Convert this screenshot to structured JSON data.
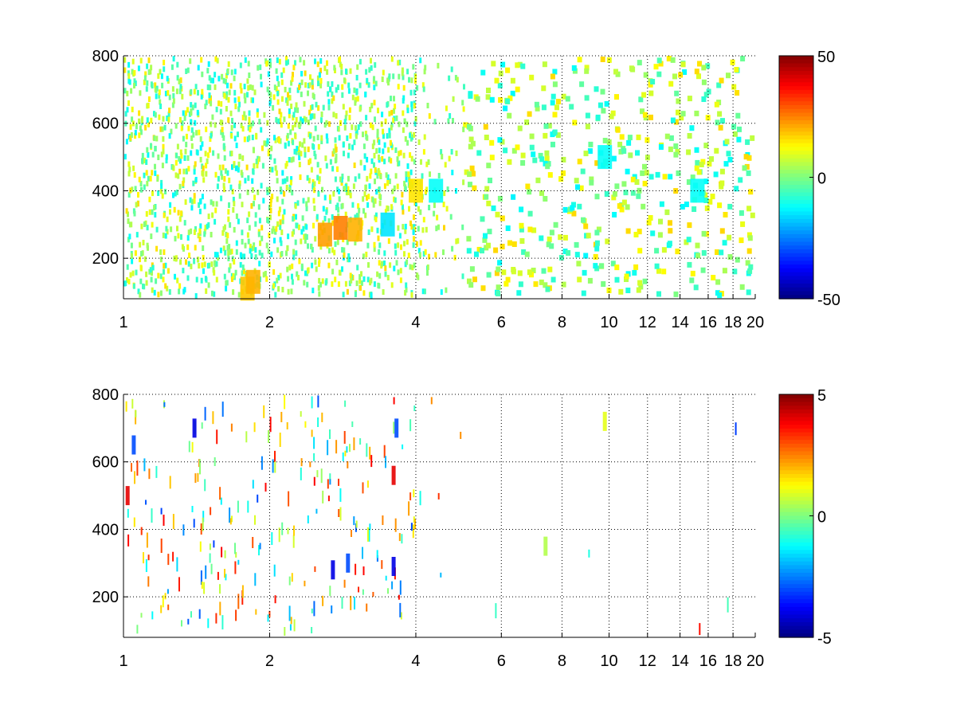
{
  "chart_data": [
    {
      "type": "heatmap",
      "title": "",
      "xlabel": "",
      "ylabel": "",
      "x_scale": "log",
      "xlim": [
        1,
        20
      ],
      "ylim": [
        80,
        800
      ],
      "x_ticks": [
        "1",
        "2",
        "4",
        "6",
        "8",
        "10",
        "12",
        "14",
        "16",
        "18",
        "20"
      ],
      "x_tick_values": [
        1,
        2,
        4,
        6,
        8,
        10,
        12,
        14,
        16,
        18,
        20
      ],
      "y_ticks": [
        "200",
        "400",
        "600",
        "800"
      ],
      "y_tick_values": [
        200,
        400,
        600,
        800
      ],
      "grid": true,
      "colormap": "jet",
      "colorbar": {
        "range": [
          -50,
          50
        ],
        "ticks": [
          "50",
          "0",
          "-50"
        ],
        "tick_values": [
          50,
          0,
          -50
        ]
      },
      "description_of_pattern": "sparse small positive and negative cells; dense near x 1-4, scattered x 4-20; strong positive cluster near x 2.5-3, y 250-320 and x 1.8, y 100-150",
      "cells": [
        {
          "x": 1.8,
          "y": 110,
          "v": 18
        },
        {
          "x": 1.85,
          "y": 130,
          "v": 20
        },
        {
          "x": 2.6,
          "y": 270,
          "v": 22
        },
        {
          "x": 2.8,
          "y": 290,
          "v": 25
        },
        {
          "x": 3.0,
          "y": 285,
          "v": 20
        },
        {
          "x": 3.5,
          "y": 300,
          "v": -15
        },
        {
          "x": 4.0,
          "y": 400,
          "v": 15
        },
        {
          "x": 4.4,
          "y": 400,
          "v": -12
        },
        {
          "x": 9.8,
          "y": 500,
          "v": -12
        },
        {
          "x": 15.2,
          "y": 400,
          "v": -12
        }
      ]
    },
    {
      "type": "heatmap",
      "title": "",
      "xlabel": "",
      "ylabel": "",
      "x_scale": "log",
      "xlim": [
        1,
        20
      ],
      "ylim": [
        80,
        800
      ],
      "x_ticks": [
        "1",
        "2",
        "4",
        "6",
        "8",
        "10",
        "12",
        "14",
        "16",
        "18",
        "20"
      ],
      "x_tick_values": [
        1,
        2,
        4,
        6,
        8,
        10,
        12,
        14,
        16,
        18,
        20
      ],
      "y_ticks": [
        "200",
        "400",
        "600",
        "800"
      ],
      "y_tick_values": [
        200,
        400,
        600,
        800
      ],
      "grid": true,
      "colormap": "jet",
      "colorbar": {
        "range": [
          -5,
          5
        ],
        "ticks": [
          "5",
          "0",
          "-5"
        ],
        "tick_values": [
          5,
          0,
          -5
        ]
      },
      "description_of_pattern": "very sparse cells; mostly x 1-4; negative cluster near x 2.5-3.8, y 250-320",
      "cells": [
        {
          "x": 1.02,
          "y": 500,
          "v": 4
        },
        {
          "x": 1.05,
          "y": 650,
          "v": -3
        },
        {
          "x": 1.4,
          "y": 700,
          "v": -4
        },
        {
          "x": 2.7,
          "y": 280,
          "v": -4
        },
        {
          "x": 2.9,
          "y": 300,
          "v": -3
        },
        {
          "x": 3.6,
          "y": 290,
          "v": -4
        },
        {
          "x": 3.6,
          "y": 560,
          "v": 4
        },
        {
          "x": 3.65,
          "y": 700,
          "v": -3
        },
        {
          "x": 7.4,
          "y": 350,
          "v": 0.5
        },
        {
          "x": 9.8,
          "y": 720,
          "v": 1
        }
      ]
    }
  ]
}
